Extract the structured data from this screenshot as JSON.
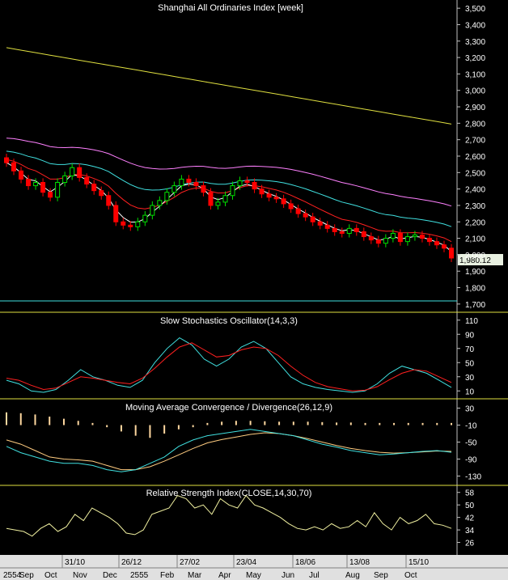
{
  "chart_data": [
    {
      "type": "candlestick",
      "title": "Shanghai All Ordinaries Index [week]",
      "ylim": [
        1650,
        3550
      ],
      "yticks": [
        1700,
        1800,
        1900,
        2000,
        2100,
        2200,
        2300,
        2400,
        2500,
        2600,
        2700,
        2800,
        2900,
        3000,
        3100,
        3200,
        3300,
        3400,
        3500
      ],
      "ytick_labels": [
        "1,700",
        "1,800",
        "1,900",
        "2,000",
        "2,100",
        "2,200",
        "2,300",
        "2,400",
        "2,500",
        "2,600",
        "2,700",
        "2,800",
        "2,900",
        "3,000",
        "3,100",
        "3,200",
        "3,300",
        "3,400",
        "3,500"
      ],
      "last_value_label": "1,980.12",
      "colors": {
        "up": "#00e000",
        "down": "#ff0000",
        "ma_fast": "#ffffff",
        "ma_mid": "#ff2020",
        "ma_slow1": "#40e0e0",
        "ma_slow2": "#ff80ff",
        "ma_long": "#e0e040"
      },
      "close": [
        2560,
        2510,
        2460,
        2420,
        2440,
        2380,
        2350,
        2440,
        2480,
        2530,
        2470,
        2430,
        2390,
        2360,
        2300,
        2200,
        2180,
        2170,
        2200,
        2240,
        2300,
        2330,
        2380,
        2420,
        2460,
        2440,
        2420,
        2380,
        2300,
        2320,
        2360,
        2420,
        2450,
        2440,
        2400,
        2370,
        2350,
        2340,
        2310,
        2280,
        2250,
        2230,
        2200,
        2180,
        2160,
        2140,
        2130,
        2160,
        2140,
        2110,
        2090,
        2070,
        2100,
        2130,
        2080,
        2110,
        2120,
        2100,
        2080,
        2060,
        2040,
        1980
      ],
      "ma_long": [
        3260,
        3245,
        3230,
        3215,
        3200,
        3185,
        3170,
        3155,
        3140,
        3125,
        3110,
        3095,
        3080,
        3065,
        3050,
        3035,
        3020,
        3005,
        2990,
        2975,
        2960,
        2945,
        2930,
        2915,
        2900,
        2885,
        2870,
        2855,
        2840,
        2825,
        2810,
        2795
      ]
    },
    {
      "type": "line",
      "title": "Slow Stochastics Oscillator(14,3,3)",
      "ylim": [
        0,
        120
      ],
      "yticks": [
        10,
        30,
        50,
        70,
        90,
        110
      ],
      "k": [
        25,
        20,
        10,
        8,
        12,
        25,
        40,
        30,
        25,
        18,
        15,
        25,
        50,
        70,
        85,
        75,
        55,
        45,
        55,
        72,
        80,
        70,
        50,
        30,
        20,
        15,
        12,
        10,
        8,
        10,
        20,
        35,
        45,
        40,
        35,
        25,
        15
      ],
      "d": [
        28,
        25,
        18,
        12,
        14,
        22,
        30,
        28,
        25,
        22,
        20,
        28,
        42,
        58,
        72,
        78,
        68,
        58,
        60,
        68,
        72,
        70,
        60,
        45,
        32,
        22,
        16,
        13,
        10,
        11,
        16,
        26,
        35,
        40,
        38,
        30,
        22
      ]
    },
    {
      "type": "line",
      "title": "Moving Average Convergence / Divergence(26,12,9)",
      "ylim": [
        -150,
        50
      ],
      "yticks": [
        30,
        -10,
        -50,
        -90,
        -130
      ],
      "macd": [
        -60,
        -75,
        -85,
        -95,
        -100,
        -100,
        -105,
        -115,
        -120,
        -115,
        -100,
        -85,
        -60,
        -45,
        -35,
        -30,
        -25,
        -20,
        -25,
        -30,
        -35,
        -45,
        -55,
        -62,
        -70,
        -75,
        -80,
        -78,
        -75,
        -72,
        -70,
        -74
      ],
      "signal": [
        -45,
        -55,
        -70,
        -85,
        -90,
        -92,
        -95,
        -105,
        -115,
        -115,
        -108,
        -95,
        -80,
        -65,
        -52,
        -44,
        -38,
        -32,
        -28,
        -30,
        -35,
        -42,
        -50,
        -58,
        -65,
        -70,
        -74,
        -76,
        -75,
        -73,
        -71,
        -72
      ],
      "histogram": [
        -30,
        -28,
        -25,
        -20,
        -15,
        -10,
        -5,
        5,
        15,
        25,
        30,
        20,
        10,
        5,
        -5,
        -8,
        -10,
        -10,
        -9,
        -8,
        -8,
        -8,
        -7,
        -6,
        -6,
        -5,
        -5,
        -5,
        -5,
        -5,
        -5,
        -5
      ]
    },
    {
      "type": "line",
      "title": "Relative Strength Index(CLOSE,14,30,70)",
      "ylim": [
        18,
        62
      ],
      "yticks": [
        58,
        50,
        42,
        34,
        26
      ],
      "values": [
        35,
        34,
        33,
        30,
        35,
        38,
        33,
        36,
        44,
        40,
        48,
        45,
        42,
        38,
        32,
        31,
        34,
        44,
        46,
        48,
        56,
        54,
        48,
        50,
        44,
        54,
        50,
        48,
        56,
        50,
        48,
        45,
        42,
        38,
        35,
        34,
        36,
        34,
        38,
        35,
        36,
        40,
        36,
        45,
        38,
        34,
        42,
        38,
        40,
        44,
        38,
        37,
        35
      ]
    }
  ],
  "x_axis": {
    "top_row": [
      "31/10",
      "26/12",
      "27/02",
      "23/04",
      "18/06",
      "13/08",
      "15/10"
    ],
    "bottom_row": [
      "2554",
      "Sep",
      "Oct",
      "Nov",
      "Dec",
      "2555",
      "Feb",
      "Mar",
      "Apr",
      "May",
      "Jun",
      "Jul",
      "Aug",
      "Sep",
      "Oct"
    ]
  }
}
